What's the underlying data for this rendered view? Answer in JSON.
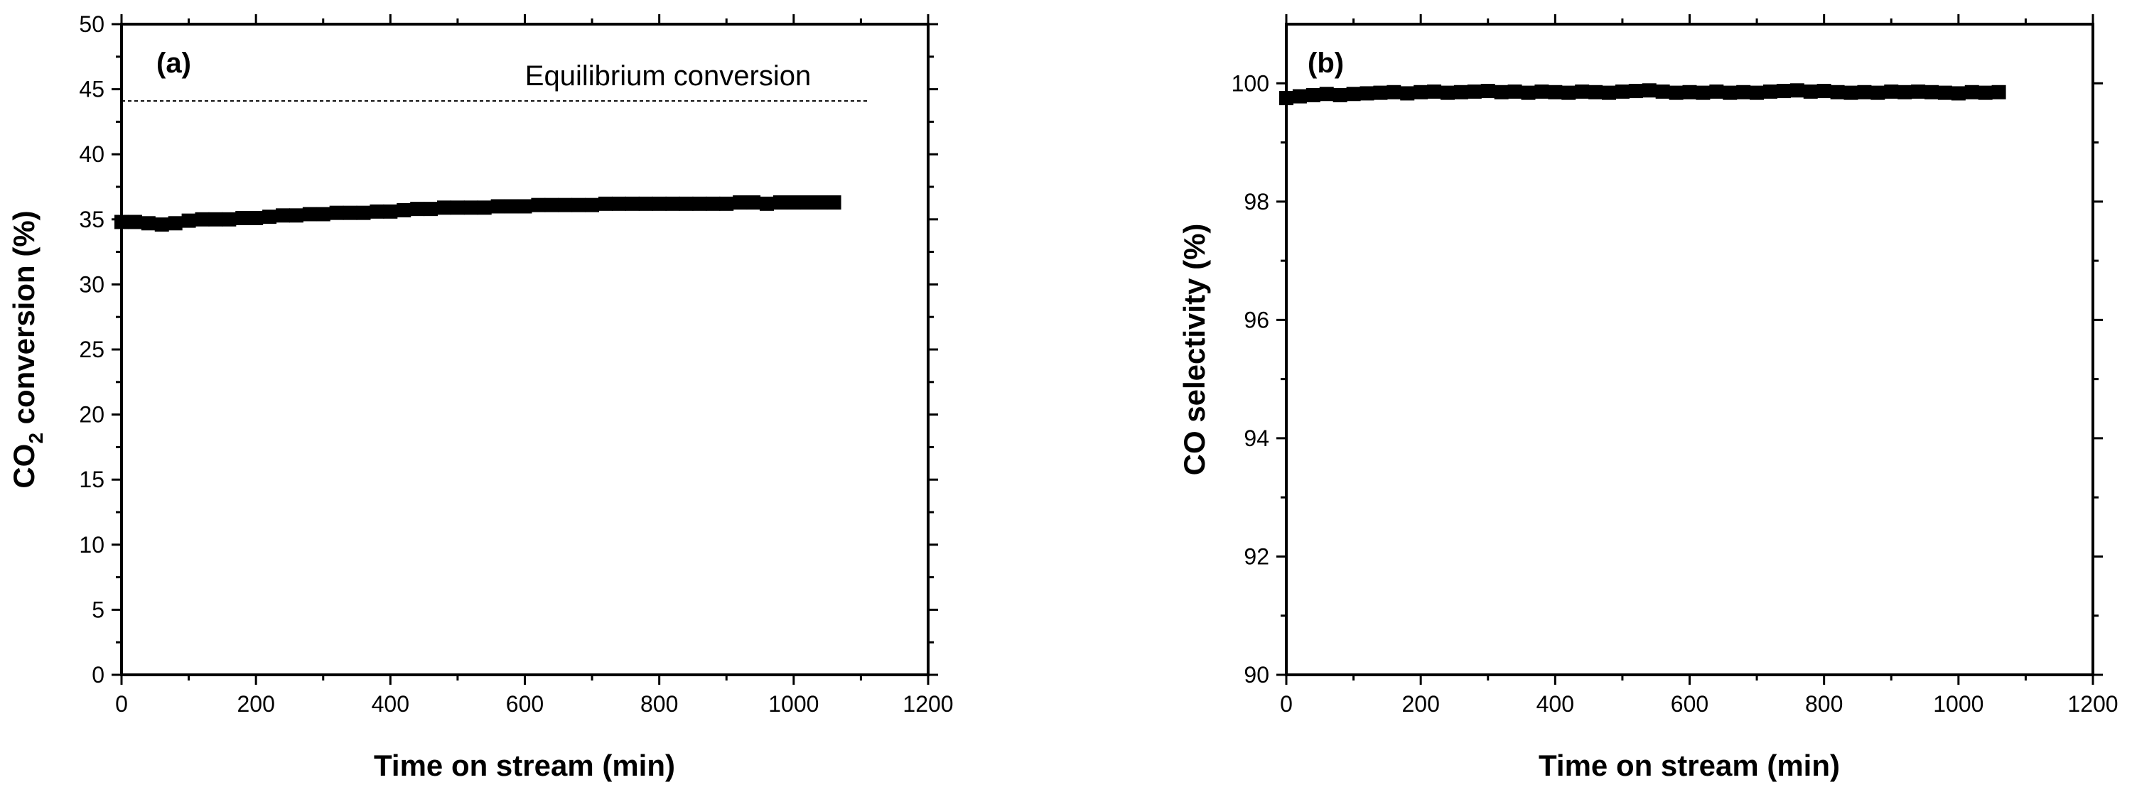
{
  "chart_data": [
    {
      "type": "scatter",
      "panel_label": "(a)",
      "xlabel": "Time on stream (min)",
      "ylabel_main": "CO",
      "ylabel_sub": "2",
      "ylabel_rest": " conversion (%)",
      "xlim": [
        0,
        1200
      ],
      "ylim": [
        0,
        50
      ],
      "xticks": [
        0,
        200,
        400,
        600,
        800,
        1000,
        1200
      ],
      "yticks": [
        0,
        5,
        10,
        15,
        20,
        25,
        30,
        35,
        40,
        45,
        50
      ],
      "grid": false,
      "reference_line": {
        "y": 44.1,
        "x_start": 0,
        "x_end": 1110,
        "style": "dashed",
        "label": "Equilibrium conversion"
      },
      "series": [
        {
          "marker": "square",
          "color": "#000000",
          "x": [
            0,
            20,
            40,
            60,
            80,
            100,
            120,
            140,
            160,
            180,
            200,
            220,
            240,
            260,
            280,
            300,
            320,
            340,
            360,
            380,
            400,
            420,
            440,
            460,
            480,
            500,
            520,
            540,
            560,
            580,
            600,
            620,
            640,
            660,
            680,
            700,
            720,
            740,
            760,
            780,
            800,
            820,
            840,
            860,
            880,
            900,
            920,
            940,
            960,
            980,
            1000,
            1020,
            1040,
            1060
          ],
          "y": [
            34.8,
            34.8,
            34.7,
            34.6,
            34.7,
            34.9,
            35.0,
            35.0,
            35.0,
            35.1,
            35.1,
            35.2,
            35.3,
            35.3,
            35.4,
            35.4,
            35.5,
            35.5,
            35.5,
            35.6,
            35.6,
            35.7,
            35.8,
            35.8,
            35.9,
            35.9,
            35.9,
            35.9,
            36.0,
            36.0,
            36.0,
            36.1,
            36.1,
            36.1,
            36.1,
            36.1,
            36.2,
            36.2,
            36.2,
            36.2,
            36.2,
            36.2,
            36.2,
            36.2,
            36.2,
            36.2,
            36.3,
            36.3,
            36.2,
            36.3,
            36.3,
            36.3,
            36.3,
            36.3
          ]
        }
      ]
    },
    {
      "type": "scatter",
      "panel_label": "(b)",
      "xlabel": "Time on stream (min)",
      "ylabel": "CO selectivity (%)",
      "xlim": [
        0,
        1200
      ],
      "ylim": [
        90,
        101
      ],
      "xticks": [
        0,
        200,
        400,
        600,
        800,
        1000,
        1200
      ],
      "yticks": [
        90,
        92,
        94,
        96,
        98,
        100
      ],
      "grid": false,
      "series": [
        {
          "marker": "square",
          "color": "#000000",
          "x": [
            0,
            20,
            40,
            60,
            80,
            100,
            120,
            140,
            160,
            180,
            200,
            220,
            240,
            260,
            280,
            300,
            320,
            340,
            360,
            380,
            400,
            420,
            440,
            460,
            480,
            500,
            520,
            540,
            560,
            580,
            600,
            620,
            640,
            660,
            680,
            700,
            720,
            740,
            760,
            780,
            800,
            820,
            840,
            860,
            880,
            900,
            920,
            940,
            960,
            980,
            1000,
            1020,
            1040,
            1060
          ],
          "y": [
            99.75,
            99.78,
            99.8,
            99.82,
            99.8,
            99.82,
            99.83,
            99.84,
            99.85,
            99.83,
            99.85,
            99.86,
            99.84,
            99.85,
            99.86,
            99.87,
            99.85,
            99.86,
            99.84,
            99.86,
            99.85,
            99.84,
            99.86,
            99.85,
            99.84,
            99.86,
            99.87,
            99.88,
            99.86,
            99.84,
            99.85,
            99.84,
            99.86,
            99.84,
            99.85,
            99.84,
            99.86,
            99.87,
            99.88,
            99.86,
            99.87,
            99.85,
            99.84,
            99.85,
            99.84,
            99.86,
            99.85,
            99.86,
            99.85,
            99.84,
            99.83,
            99.85,
            99.84,
            99.85
          ]
        }
      ]
    }
  ]
}
